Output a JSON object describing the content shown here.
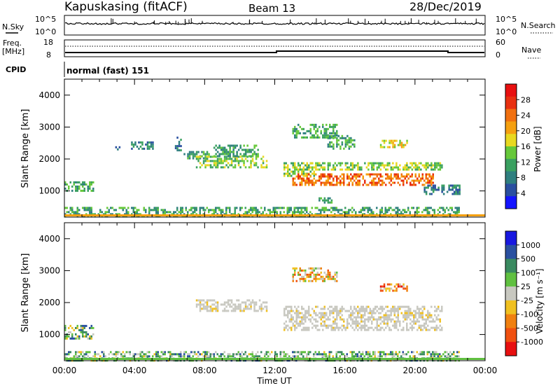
{
  "header": {
    "station": "Kapuskasing (fitACF)",
    "beam": "Beam 13",
    "date": "28/Dec/2019"
  },
  "noise_panel": {
    "left_label": "N.Sky",
    "right_label": "N.Search",
    "left_ticks": [
      "10^5",
      "10^0"
    ],
    "right_ticks": [
      "10^5",
      "10^0"
    ]
  },
  "freq_panel": {
    "left_label": "Freq.",
    "left_unit": "[MHz]",
    "right_label": "Nave",
    "left_ticks": [
      "18",
      "8"
    ],
    "right_ticks": [
      "60",
      "0"
    ]
  },
  "cpid": {
    "label": "CPID",
    "value": "normal (fast) 151"
  },
  "time_axis": {
    "label": "Time UT",
    "ticks": [
      "00:00",
      "04:00",
      "08:00",
      "12:00",
      "16:00",
      "20:00",
      "00:00"
    ]
  },
  "range_axis": {
    "label": "Slant Range [km]",
    "ticks": [
      "1000",
      "2000",
      "3000",
      "4000"
    ]
  },
  "chart_data": [
    {
      "type": "heatmap",
      "title": "Power",
      "xlabel": "Time UT",
      "ylabel": "Slant Range [km]",
      "x_range_hours": [
        0,
        24
      ],
      "y_range_km": [
        180,
        4500
      ],
      "colorbar": {
        "label": "Power [dB]",
        "ticks": [
          "4",
          "8",
          "12",
          "16",
          "20",
          "24",
          "28"
        ],
        "colors": [
          "#1414ff",
          "#2a4fa0",
          "#2f7f7f",
          "#3aa060",
          "#66c83a",
          "#e8d820",
          "#f5a010",
          "#f07010",
          "#e83010",
          "#e81010"
        ]
      },
      "echo_regions": [
        {
          "t0": 0.0,
          "t1": 1.6,
          "r0": 1000,
          "r1": 1300,
          "level": 11
        },
        {
          "t0": 0.0,
          "t1": 22.5,
          "r0": 180,
          "r1": 500,
          "level": 9
        },
        {
          "t0": 2.9,
          "t1": 3.1,
          "r0": 2300,
          "r1": 2400,
          "level": 8
        },
        {
          "t0": 3.8,
          "t1": 5.0,
          "r0": 2350,
          "r1": 2550,
          "level": 8
        },
        {
          "t0": 6.3,
          "t1": 6.6,
          "r0": 2300,
          "r1": 2700,
          "level": 8
        },
        {
          "t0": 6.8,
          "t1": 8.2,
          "r0": 2050,
          "r1": 2250,
          "level": 11
        },
        {
          "t0": 7.5,
          "t1": 11.5,
          "r0": 1750,
          "r1": 2100,
          "level": 13
        },
        {
          "t0": 8.5,
          "t1": 11.0,
          "r0": 2100,
          "r1": 2450,
          "level": 11
        },
        {
          "t0": 12.5,
          "t1": 14.2,
          "r0": 1500,
          "r1": 1900,
          "level": 14
        },
        {
          "t0": 13.0,
          "t1": 21.0,
          "r0": 1200,
          "r1": 1550,
          "level": 22
        },
        {
          "t0": 14.0,
          "t1": 21.5,
          "r0": 1650,
          "r1": 1900,
          "level": 12
        },
        {
          "t0": 13.0,
          "t1": 15.5,
          "r0": 2700,
          "r1": 3100,
          "level": 10
        },
        {
          "t0": 15.0,
          "t1": 16.5,
          "r0": 2350,
          "r1": 2750,
          "level": 10
        },
        {
          "t0": 18.0,
          "t1": 19.5,
          "r0": 2350,
          "r1": 2600,
          "level": 15
        },
        {
          "t0": 20.5,
          "t1": 22.5,
          "r0": 900,
          "r1": 1200,
          "level": 8
        },
        {
          "t0": 14.5,
          "t1": 15.2,
          "r0": 650,
          "r1": 800,
          "level": 10
        }
      ]
    },
    {
      "type": "heatmap",
      "title": "Velocity",
      "xlabel": "Time UT",
      "ylabel": "Slant Range [km]",
      "x_range_hours": [
        0,
        24
      ],
      "y_range_km": [
        180,
        4500
      ],
      "colorbar": {
        "label": "Velocity [m s⁻¹]",
        "ticks": [
          "1000",
          "500",
          "100",
          "25",
          "-25",
          "-100",
          "-500",
          "-1000"
        ],
        "colors": [
          "#1818e0",
          "#2a50a0",
          "#3a8a60",
          "#60c040",
          "#c8c8c0",
          "#f0c020",
          "#f08010",
          "#f05010",
          "#e81010"
        ]
      },
      "echo_regions": [
        {
          "t0": 0.0,
          "t1": 1.6,
          "r0": 900,
          "r1": 1300,
          "level": 25
        },
        {
          "t0": 0.0,
          "t1": 22.5,
          "r0": 180,
          "r1": 480,
          "level": 100
        },
        {
          "t0": 7.5,
          "t1": 11.5,
          "r0": 1750,
          "r1": 2100,
          "level": 0
        },
        {
          "t0": 12.5,
          "t1": 21.5,
          "r0": 1150,
          "r1": 1900,
          "level": 0
        },
        {
          "t0": 13.0,
          "t1": 15.5,
          "r0": 2700,
          "r1": 3100,
          "level": -100
        },
        {
          "t0": 18.0,
          "t1": 19.5,
          "r0": 2350,
          "r1": 2600,
          "level": -500
        }
      ]
    }
  ]
}
